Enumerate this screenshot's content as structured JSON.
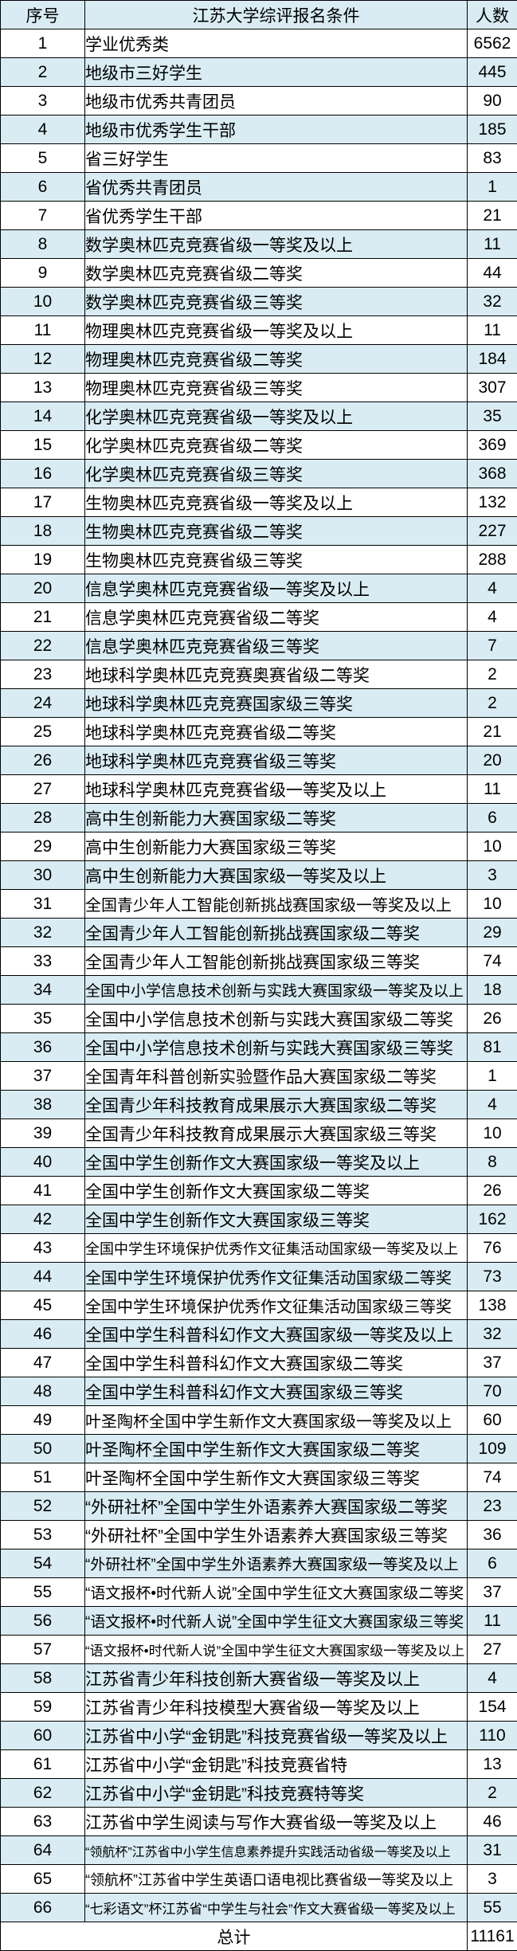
{
  "colors": {
    "row_alt": "#d9ecf3",
    "border": "#000000",
    "text": "#000000",
    "background": "#ffffff"
  },
  "table": {
    "headers": [
      "序号",
      "江苏大学综评报名条件",
      "人数"
    ],
    "rows": [
      {
        "no": 1,
        "condition": "学业优秀类",
        "count": 6562
      },
      {
        "no": 2,
        "condition": "地级市三好学生",
        "count": 445
      },
      {
        "no": 3,
        "condition": "地级市优秀共青团员",
        "count": 90
      },
      {
        "no": 4,
        "condition": "地级市优秀学生干部",
        "count": 185
      },
      {
        "no": 5,
        "condition": "省三好学生",
        "count": 83
      },
      {
        "no": 6,
        "condition": "省优秀共青团员",
        "count": 1
      },
      {
        "no": 7,
        "condition": "省优秀学生干部",
        "count": 21
      },
      {
        "no": 8,
        "condition": "数学奥林匹克竞赛省级一等奖及以上",
        "count": 11
      },
      {
        "no": 9,
        "condition": "数学奥林匹克竞赛省级二等奖",
        "count": 44
      },
      {
        "no": 10,
        "condition": "数学奥林匹克竞赛省级三等奖",
        "count": 32
      },
      {
        "no": 11,
        "condition": "物理奥林匹克竞赛省级一等奖及以上",
        "count": 11
      },
      {
        "no": 12,
        "condition": "物理奥林匹克竞赛省级二等奖",
        "count": 184
      },
      {
        "no": 13,
        "condition": "物理奥林匹克竞赛省级三等奖",
        "count": 307
      },
      {
        "no": 14,
        "condition": "化学奥林匹克竞赛省级一等奖及以上",
        "count": 35
      },
      {
        "no": 15,
        "condition": "化学奥林匹克竞赛省级二等奖",
        "count": 369
      },
      {
        "no": 16,
        "condition": "化学奥林匹克竞赛省级三等奖",
        "count": 368
      },
      {
        "no": 17,
        "condition": "生物奥林匹克竞赛省级一等奖及以上",
        "count": 132
      },
      {
        "no": 18,
        "condition": "生物奥林匹克竞赛省级二等奖",
        "count": 227
      },
      {
        "no": 19,
        "condition": "生物奥林匹克竞赛省级三等奖",
        "count": 288
      },
      {
        "no": 20,
        "condition": "信息学奥林匹克竞赛省级一等奖及以上",
        "count": 4
      },
      {
        "no": 21,
        "condition": "信息学奥林匹克竞赛省级二等奖",
        "count": 4
      },
      {
        "no": 22,
        "condition": "信息学奥林匹克竞赛省级三等奖",
        "count": 7
      },
      {
        "no": 23,
        "condition": "地球科学奥林匹克竞赛奥赛省级二等奖",
        "count": 2
      },
      {
        "no": 24,
        "condition": "地球科学奥林匹克竞赛国家级三等奖",
        "count": 2
      },
      {
        "no": 25,
        "condition": "地球科学奥林匹克竞赛省级二等奖",
        "count": 21
      },
      {
        "no": 26,
        "condition": "地球科学奥林匹克竞赛省级三等奖",
        "count": 20
      },
      {
        "no": 27,
        "condition": "地球科学奥林匹克竞赛省级一等奖及以上",
        "count": 11
      },
      {
        "no": 28,
        "condition": "高中生创新能力大赛国家级二等奖",
        "count": 6
      },
      {
        "no": 29,
        "condition": "高中生创新能力大赛国家级三等奖",
        "count": 10
      },
      {
        "no": 30,
        "condition": "高中生创新能力大赛国家级一等奖及以上",
        "count": 3
      },
      {
        "no": 31,
        "condition": "全国青少年人工智能创新挑战赛国家级一等奖及以上",
        "count": 10
      },
      {
        "no": 32,
        "condition": "全国青少年人工智能创新挑战赛国家级二等奖",
        "count": 29
      },
      {
        "no": 33,
        "condition": "全国青少年人工智能创新挑战赛国家级三等奖",
        "count": 74
      },
      {
        "no": 34,
        "condition": "全国中小学信息技术创新与实践大赛国家级一等奖及以上",
        "count": 18
      },
      {
        "no": 35,
        "condition": "全国中小学信息技术创新与实践大赛国家级二等奖",
        "count": 26
      },
      {
        "no": 36,
        "condition": "全国中小学信息技术创新与实践大赛国家级三等奖",
        "count": 81
      },
      {
        "no": 37,
        "condition": "全国青年科普创新实验暨作品大赛国家级二等奖",
        "count": 1
      },
      {
        "no": 38,
        "condition": "全国青少年科技教育成果展示大赛国家级二等奖",
        "count": 4
      },
      {
        "no": 39,
        "condition": "全国青少年科技教育成果展示大赛国家级三等奖",
        "count": 10
      },
      {
        "no": 40,
        "condition": "全国中学生创新作文大赛国家级一等奖及以上",
        "count": 8
      },
      {
        "no": 41,
        "condition": "全国中学生创新作文大赛国家级二等奖",
        "count": 26
      },
      {
        "no": 42,
        "condition": "全国中学生创新作文大赛国家级三等奖",
        "count": 162
      },
      {
        "no": 43,
        "condition": "全国中学生环境保护优秀作文征集活动国家级一等奖及以上",
        "count": 76
      },
      {
        "no": 44,
        "condition": "全国中学生环境保护优秀作文征集活动国家级二等奖",
        "count": 73
      },
      {
        "no": 45,
        "condition": "全国中学生环境保护优秀作文征集活动国家级三等奖",
        "count": 138
      },
      {
        "no": 46,
        "condition": "全国中学生科普科幻作文大赛国家级一等奖及以上",
        "count": 32
      },
      {
        "no": 47,
        "condition": "全国中学生科普科幻作文大赛国家级二等奖",
        "count": 37
      },
      {
        "no": 48,
        "condition": "全国中学生科普科幻作文大赛国家级三等奖",
        "count": 70
      },
      {
        "no": 49,
        "condition": "叶圣陶杯全国中学生新作文大赛国家级一等奖及以上",
        "count": 60
      },
      {
        "no": 50,
        "condition": "叶圣陶杯全国中学生新作文大赛国家级二等奖",
        "count": 109
      },
      {
        "no": 51,
        "condition": "叶圣陶杯全国中学生新作文大赛国家级三等奖",
        "count": 74
      },
      {
        "no": 52,
        "condition": "“外研社杯”全国中学生外语素养大赛国家级二等奖",
        "count": 23
      },
      {
        "no": 53,
        "condition": "“外研社杯”全国中学生外语素养大赛国家级三等奖",
        "count": 36
      },
      {
        "no": 54,
        "condition": "“外研社杯”全国中学生外语素养大赛国家级一等奖及以上",
        "count": 6
      },
      {
        "no": 55,
        "condition": "“语文报杯•时代新人说”全国中学生征文大赛国家级二等奖",
        "count": 37
      },
      {
        "no": 56,
        "condition": "“语文报杯•时代新人说”全国中学生征文大赛国家级三等奖",
        "count": 11
      },
      {
        "no": 57,
        "condition": "“语文报杯•时代新人说”全国中学生征文大赛国家级一等奖及以上",
        "count": 27
      },
      {
        "no": 58,
        "condition": "江苏省青少年科技创新大赛省级一等奖及以上",
        "count": 4
      },
      {
        "no": 59,
        "condition": "江苏省青少年科技模型大赛省级一等奖及以上",
        "count": 154
      },
      {
        "no": 60,
        "condition": "江苏省中小学“金钥匙”科技竞赛省级一等奖及以上",
        "count": 110
      },
      {
        "no": 61,
        "condition": "江苏省中小学“金钥匙”科技竞赛省特",
        "count": 13
      },
      {
        "no": 62,
        "condition": "江苏省中小学“金钥匙”科技竞赛特等奖",
        "count": 2
      },
      {
        "no": 63,
        "condition": "江苏省中学生阅读与写作大赛省级一等奖及以上",
        "count": 46
      },
      {
        "no": 64,
        "condition": "“领航杯”江苏省中小学生信息素养提升实践活动省级一等奖及以上",
        "count": 31
      },
      {
        "no": 65,
        "condition": "“领航杯”江苏省中学生英语口语电视比赛省级一等奖及以上",
        "count": 3
      },
      {
        "no": 66,
        "condition": "“七彩语文”杯江苏省“中学生与社会”作文大赛省级一等奖及以上",
        "count": 55
      }
    ],
    "total_label": "总计",
    "total_value": 11161
  }
}
